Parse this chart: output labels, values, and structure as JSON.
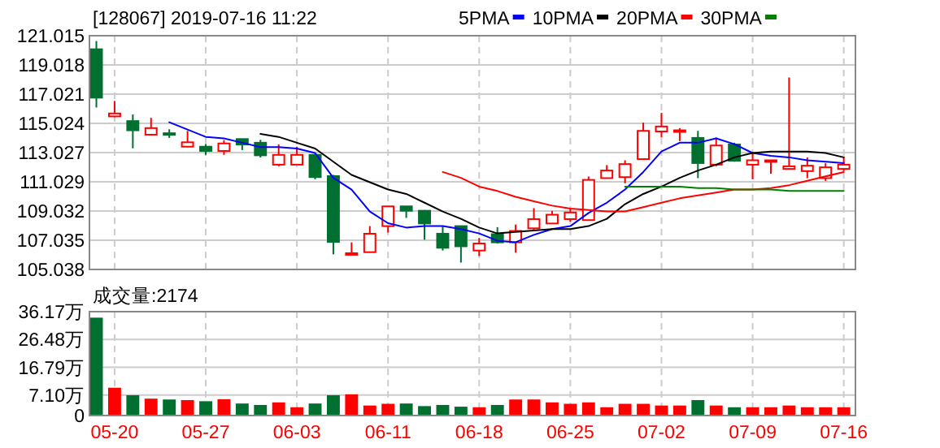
{
  "chart_data": [
    {
      "type": "candlestick",
      "title": "[128067] 2019-07-16 11:22",
      "categories": [
        null,
        null,
        null,
        null,
        null,
        null,
        null,
        null,
        null,
        null,
        null,
        null,
        null,
        null,
        null,
        null,
        null,
        null,
        null,
        null,
        null,
        null,
        null,
        null,
        null,
        null,
        null,
        null,
        null,
        null,
        null,
        null,
        null,
        null,
        null,
        null,
        null,
        null,
        null,
        null,
        null,
        null
      ],
      "ohlc": [
        [
          120.09,
          120.65,
          116.11,
          116.78
        ],
        [
          115.5,
          116.55,
          115.45,
          115.7
        ],
        [
          115.18,
          115.63,
          113.32,
          114.55
        ],
        [
          114.25,
          115.4,
          114.2,
          114.7
        ],
        [
          114.35,
          114.62,
          114.03,
          114.3
        ],
        [
          113.43,
          114.51,
          113.4,
          113.73
        ],
        [
          113.43,
          113.6,
          112.87,
          113.14
        ],
        [
          113.14,
          113.88,
          112.87,
          113.65
        ],
        [
          113.95,
          113.95,
          113.2,
          113.58
        ],
        [
          113.7,
          113.9,
          112.69,
          112.84
        ],
        [
          112.2,
          113.58,
          112.09,
          112.87
        ],
        [
          112.2,
          113.43,
          112.2,
          112.87
        ],
        [
          112.87,
          112.95,
          111.2,
          111.35
        ],
        [
          111.42,
          111.5,
          106.07,
          106.92
        ],
        [
          106.05,
          106.89,
          105.98,
          106.15
        ],
        [
          106.22,
          108.0,
          106.2,
          107.48
        ],
        [
          108.0,
          109.35,
          107.56,
          109.35
        ],
        [
          109.35,
          109.35,
          108.56,
          109.05
        ],
        [
          109.05,
          109.1,
          107.07,
          108.18
        ],
        [
          107.48,
          108.0,
          106.33,
          106.52
        ],
        [
          108.0,
          108.0,
          105.51,
          106.62
        ],
        [
          106.33,
          107.19,
          105.95,
          106.81
        ],
        [
          107.45,
          107.93,
          106.81,
          106.89
        ],
        [
          106.89,
          108.11,
          106.18,
          107.67
        ],
        [
          107.85,
          109.23,
          107.67,
          108.48
        ],
        [
          108.18,
          109.04,
          108.18,
          108.78
        ],
        [
          108.48,
          109.23,
          108.3,
          108.93
        ],
        [
          108.41,
          111.39,
          108.41,
          111.16
        ],
        [
          111.28,
          112.17,
          111.28,
          111.8
        ],
        [
          111.35,
          112.5,
          110.93,
          112.24
        ],
        [
          112.58,
          115.07,
          112.58,
          114.51
        ],
        [
          114.47,
          115.74,
          114.06,
          114.81
        ],
        [
          114.45,
          114.7,
          113.81,
          114.55
        ],
        [
          114.03,
          114.51,
          111.28,
          112.31
        ],
        [
          112.2,
          114.06,
          112.09,
          113.51
        ],
        [
          113.58,
          113.7,
          112.4,
          112.47
        ],
        [
          112.2,
          112.95,
          111.2,
          112.5
        ],
        [
          112.39,
          112.5,
          111.58,
          112.5
        ],
        [
          111.91,
          118.16,
          111.91,
          112.09
        ],
        [
          111.76,
          112.69,
          111.28,
          112.13
        ],
        [
          111.28,
          112.3,
          111.09,
          112.02
        ],
        [
          111.91,
          112.76,
          111.76,
          112.2
        ]
      ],
      "colors": [
        "#007030",
        "#ff0000",
        "#007030",
        "#ff0000",
        "#007030",
        "#ff0000",
        "#007030",
        "#ff0000",
        "#007030",
        "#007030",
        "#ff0000",
        "#ff0000",
        "#007030",
        "#007030",
        "#ff0000",
        "#ff0000",
        "#ff0000",
        "#007030",
        "#007030",
        "#007030",
        "#007030",
        "#ff0000",
        "#007030",
        "#ff0000",
        "#ff0000",
        "#ff0000",
        "#ff0000",
        "#ff0000",
        "#ff0000",
        "#ff0000",
        "#ff0000",
        "#ff0000",
        "#ff0000",
        "#007030",
        "#ff0000",
        "#007030",
        "#ff0000",
        "#ff0000",
        "#ff0000",
        "#ff0000",
        "#ff0000",
        "#ff0000"
      ],
      "series": [
        {
          "name": "5PMA",
          "type": "line",
          "color": "#0000ff",
          "values": [
            null,
            null,
            null,
            null,
            115.1,
            114.6,
            114.1,
            114.0,
            113.7,
            113.4,
            113.4,
            113.3,
            113.0,
            111.3,
            110.5,
            109.0,
            108.2,
            107.9,
            108.0,
            108.0,
            107.8,
            107.5,
            107.0,
            106.9,
            107.4,
            107.8,
            108.0,
            108.9,
            109.6,
            110.5,
            111.7,
            113.1,
            113.7,
            113.7,
            114.0,
            113.6,
            113.0,
            112.8,
            112.7,
            112.5,
            112.4,
            112.3
          ]
        },
        {
          "name": "10PMA",
          "type": "line",
          "color": "#000000",
          "values": [
            null,
            null,
            null,
            null,
            null,
            null,
            null,
            null,
            null,
            114.3,
            114.1,
            113.7,
            113.3,
            112.4,
            111.5,
            111.0,
            110.5,
            110.2,
            109.6,
            109.0,
            108.5,
            107.9,
            107.5,
            107.6,
            107.7,
            107.8,
            107.8,
            108.0,
            108.5,
            109.5,
            110.2,
            110.7,
            111.3,
            111.8,
            112.2,
            112.7,
            113.0,
            113.1,
            113.1,
            113.1,
            113.0,
            112.7
          ]
        },
        {
          "name": "20PMA",
          "type": "line",
          "color": "#ff0000",
          "values": [
            null,
            null,
            null,
            null,
            null,
            null,
            null,
            null,
            null,
            null,
            null,
            null,
            null,
            null,
            null,
            null,
            null,
            null,
            null,
            111.7,
            111.3,
            110.7,
            110.4,
            110.0,
            109.7,
            109.4,
            109.2,
            109.1,
            109.0,
            109.0,
            109.3,
            109.6,
            109.9,
            110.1,
            110.3,
            110.5,
            110.5,
            110.6,
            110.8,
            111.1,
            111.4,
            111.7
          ]
        },
        {
          "name": "30PMA",
          "type": "line",
          "color": "#008000",
          "values": [
            null,
            null,
            null,
            null,
            null,
            null,
            null,
            null,
            null,
            null,
            null,
            null,
            null,
            null,
            null,
            null,
            null,
            null,
            null,
            null,
            null,
            null,
            null,
            null,
            null,
            null,
            null,
            null,
            null,
            110.7,
            110.7,
            110.7,
            110.7,
            110.6,
            110.6,
            110.5,
            110.5,
            110.5,
            110.4,
            110.4,
            110.4,
            110.4
          ]
        }
      ],
      "ylim": [
        105.038,
        121.015
      ],
      "yticks": [
        121.015,
        119.018,
        117.021,
        115.024,
        113.027,
        111.029,
        109.032,
        107.035,
        105.038
      ],
      "grid": true,
      "legend": "top",
      "tick_labels": "y"
    },
    {
      "type": "bar",
      "title": "成交量:2174",
      "categories": [
        null,
        "05-20",
        null,
        null,
        null,
        null,
        "05-27",
        null,
        null,
        null,
        null,
        "06-03",
        null,
        null,
        null,
        null,
        "06-11",
        null,
        null,
        null,
        null,
        "06-18",
        null,
        null,
        null,
        null,
        "06-25",
        null,
        null,
        null,
        null,
        "07-02",
        null,
        null,
        null,
        null,
        "07-09",
        null,
        null,
        null,
        null,
        "07-16"
      ],
      "values": [
        33.8,
        9.4,
        6.8,
        5.6,
        5.3,
        5.1,
        4.7,
        5.4,
        3.9,
        3.4,
        4.3,
        2.6,
        3.9,
        6.8,
        7.1,
        3.2,
        3.8,
        3.9,
        3.0,
        3.4,
        2.8,
        2.6,
        3.4,
        5.3,
        5.3,
        4.3,
        3.8,
        4.3,
        2.6,
        3.8,
        3.8,
        3.2,
        3.2,
        5.1,
        3.2,
        2.6,
        2.6,
        2.6,
        3.2,
        2.6,
        2.6,
        2.6
      ],
      "colors": [
        "#007030",
        "#ff0000",
        "#007030",
        "#ff0000",
        "#007030",
        "#ff0000",
        "#007030",
        "#ff0000",
        "#007030",
        "#007030",
        "#ff0000",
        "#ff0000",
        "#007030",
        "#007030",
        "#ff0000",
        "#ff0000",
        "#ff0000",
        "#007030",
        "#007030",
        "#007030",
        "#007030",
        "#ff0000",
        "#007030",
        "#ff0000",
        "#ff0000",
        "#ff0000",
        "#ff0000",
        "#ff0000",
        "#ff0000",
        "#ff0000",
        "#ff0000",
        "#ff0000",
        "#ff0000",
        "#007030",
        "#ff0000",
        "#007030",
        "#ff0000",
        "#ff0000",
        "#ff0000",
        "#ff0000",
        "#ff0000",
        "#ff0000"
      ],
      "ylim": [
        0,
        36.17
      ],
      "yticks": [
        0,
        {
          "value": 7.1,
          "label": "7.10万"
        },
        {
          "value": 16.79,
          "label": "16.79万"
        },
        {
          "value": 26.48,
          "label": "26.48万"
        },
        {
          "value": 36.17,
          "label": "36.17万"
        }
      ],
      "grid": true
    }
  ]
}
